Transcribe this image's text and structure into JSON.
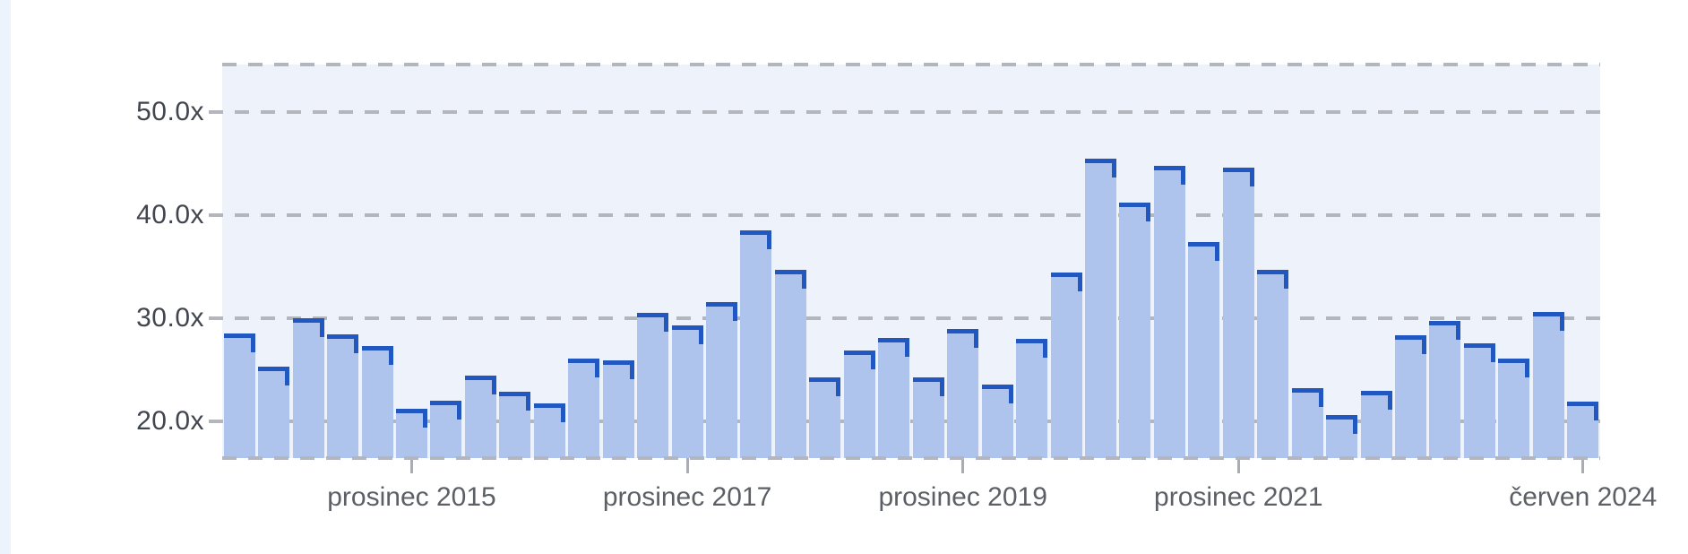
{
  "page": {
    "background": "#ffffff",
    "left_strip_color": "#edf3fd"
  },
  "chart_data": {
    "type": "bar",
    "title": "",
    "xlabel": "",
    "ylabel": "",
    "unit": "x",
    "values": [
      28.5,
      25.3,
      30.0,
      28.4,
      27.3,
      21.2,
      22.0,
      24.4,
      22.8,
      21.7,
      26.1,
      25.9,
      30.5,
      29.3,
      31.5,
      38.5,
      34.7,
      24.2,
      26.8,
      28.1,
      24.2,
      28.9,
      23.5,
      28.0,
      34.4,
      45.5,
      41.2,
      44.8,
      37.4,
      44.6,
      34.7,
      23.2,
      20.6,
      22.9,
      28.3,
      29.7,
      27.5,
      26.1,
      30.6,
      21.9
    ],
    "bar_count": 40,
    "x_ticks": [
      {
        "label": "prosinec 2015",
        "bar_index": 5
      },
      {
        "label": "prosinec 2017",
        "bar_index": 13
      },
      {
        "label": "prosinec 2019",
        "bar_index": 21
      },
      {
        "label": "prosinec 2021",
        "bar_index": 29
      },
      {
        "label": "červen 2024",
        "bar_index": 39
      }
    ],
    "y_ticks": [
      {
        "label": "20.0x",
        "value": 20
      },
      {
        "label": "30.0x",
        "value": 30
      },
      {
        "label": "40.0x",
        "value": 40
      },
      {
        "label": "50.0x",
        "value": 50
      }
    ],
    "ylim": [
      16.4,
      54.6
    ],
    "grid": "horizontal dashed, top and baseline dashed edges",
    "legend": "none",
    "colors": {
      "bar_fill": "#afc4ec",
      "bar_edge": "#2057c1",
      "plot_bg": "#eef2fb",
      "grid": "#b3b7bd",
      "y_label": "#41454e",
      "x_label": "#5c6066",
      "tick": "#a9adb3"
    }
  }
}
